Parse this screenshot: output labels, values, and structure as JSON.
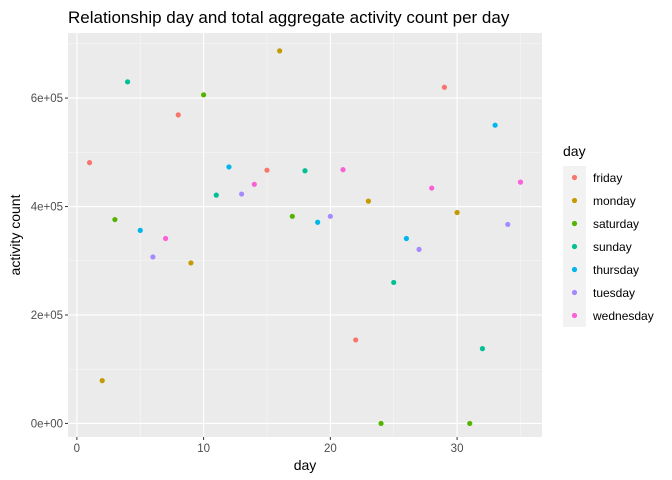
{
  "chart_data": {
    "type": "scatter",
    "title": "Relationship day and total aggregate activity count per day",
    "xlabel": "day",
    "ylabel": "activity count",
    "xlim": [
      -0.7,
      36.7
    ],
    "ylim": [
      -25000,
      720000
    ],
    "x_ticks": [
      0,
      10,
      20,
      30
    ],
    "x_tick_labels": [
      "0",
      "10",
      "20",
      "30"
    ],
    "y_ticks": [
      0,
      200000,
      400000,
      600000
    ],
    "y_tick_labels": [
      "0e+00",
      "2e+05",
      "4e+05",
      "6e+05"
    ],
    "grid": true,
    "legend_title": "day",
    "legend_position": "right",
    "series": [
      {
        "name": "friday",
        "color": "#F8766D",
        "x": [
          1,
          8,
          15,
          22,
          29
        ],
        "y": [
          481000,
          569000,
          467000,
          154000,
          620000
        ]
      },
      {
        "name": "monday",
        "color": "#C49A00",
        "x": [
          2,
          9,
          16,
          23,
          30
        ],
        "y": [
          79000,
          296000,
          687000,
          410000,
          389000
        ]
      },
      {
        "name": "saturday",
        "color": "#53B400",
        "x": [
          3,
          10,
          17,
          24,
          31
        ],
        "y": [
          376000,
          606000,
          382000,
          0,
          0
        ]
      },
      {
        "name": "sunday",
        "color": "#00C094",
        "x": [
          4,
          11,
          18,
          25,
          32
        ],
        "y": [
          630000,
          421000,
          466000,
          260000,
          138000
        ]
      },
      {
        "name": "thursday",
        "color": "#00B6EB",
        "x": [
          5,
          12,
          19,
          26,
          33
        ],
        "y": [
          356000,
          473000,
          371000,
          341000,
          550000
        ]
      },
      {
        "name": "tuesday",
        "color": "#A58AFF",
        "x": [
          6,
          13,
          20,
          27,
          34
        ],
        "y": [
          307000,
          423000,
          382000,
          321000,
          367000
        ]
      },
      {
        "name": "wednesday",
        "color": "#FB61D7",
        "x": [
          7,
          14,
          21,
          28,
          35
        ],
        "y": [
          341000,
          441000,
          468000,
          434000,
          445000
        ]
      }
    ]
  }
}
